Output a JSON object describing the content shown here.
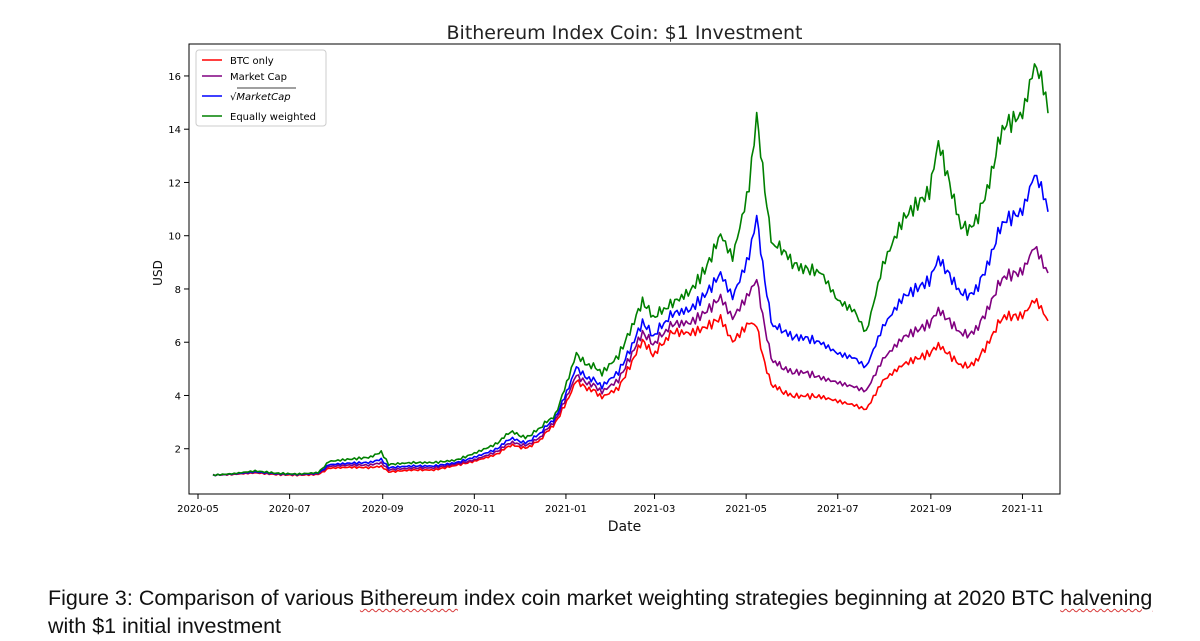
{
  "chart_data": {
    "type": "line",
    "title": "Bithereum Index Coin: $1 Investment",
    "xlabel": "Date",
    "ylabel": "USD",
    "x_ticks": [
      "2020-05",
      "2020-07",
      "2020-09",
      "2020-11",
      "2021-01",
      "2021-03",
      "2021-05",
      "2021-07",
      "2021-09",
      "2021-11"
    ],
    "y_ticks": [
      2,
      4,
      6,
      8,
      10,
      12,
      14,
      16
    ],
    "xlim": [
      "2020-04-25",
      "2021-11-26"
    ],
    "ylim": [
      0.3,
      17.2
    ],
    "legend_position": "top-left",
    "series": [
      {
        "name": "BTC only",
        "color": "#ff0000",
        "points": [
          [
            "2020-05-11",
            1.0
          ],
          [
            "2020-05-25",
            1.02
          ],
          [
            "2020-06-08",
            1.08
          ],
          [
            "2020-06-22",
            1.03
          ],
          [
            "2020-07-06",
            1.02
          ],
          [
            "2020-07-20",
            1.05
          ],
          [
            "2020-07-27",
            1.25
          ],
          [
            "2020-08-10",
            1.3
          ],
          [
            "2020-08-24",
            1.3
          ],
          [
            "2020-08-31",
            1.32
          ],
          [
            "2020-09-05",
            1.12
          ],
          [
            "2020-09-20",
            1.18
          ],
          [
            "2020-10-05",
            1.2
          ],
          [
            "2020-10-20",
            1.4
          ],
          [
            "2020-11-01",
            1.55
          ],
          [
            "2020-11-15",
            1.8
          ],
          [
            "2020-11-25",
            2.1
          ],
          [
            "2020-12-05",
            2.05
          ],
          [
            "2020-12-15",
            2.3
          ],
          [
            "2020-12-25",
            3.0
          ],
          [
            "2021-01-03",
            4.0
          ],
          [
            "2021-01-08",
            4.6
          ],
          [
            "2021-01-15",
            4.3
          ],
          [
            "2021-01-25",
            3.9
          ],
          [
            "2021-02-05",
            4.2
          ],
          [
            "2021-02-14",
            5.2
          ],
          [
            "2021-02-21",
            6.2
          ],
          [
            "2021-02-28",
            5.4
          ],
          [
            "2021-03-13",
            6.5
          ],
          [
            "2021-03-25",
            6.4
          ],
          [
            "2021-04-05",
            6.7
          ],
          [
            "2021-04-14",
            7.0
          ],
          [
            "2021-04-22",
            6.1
          ],
          [
            "2021-05-03",
            6.7
          ],
          [
            "2021-05-08",
            6.5
          ],
          [
            "2021-05-12",
            5.5
          ],
          [
            "2021-05-19",
            4.3
          ],
          [
            "2021-05-26",
            4.1
          ],
          [
            "2021-06-08",
            4.0
          ],
          [
            "2021-06-20",
            3.9
          ],
          [
            "2021-07-01",
            3.8
          ],
          [
            "2021-07-12",
            3.7
          ],
          [
            "2021-07-20",
            3.5
          ],
          [
            "2021-07-31",
            4.5
          ],
          [
            "2021-08-14",
            5.1
          ],
          [
            "2021-08-31",
            5.5
          ],
          [
            "2021-09-06",
            5.8
          ],
          [
            "2021-09-21",
            5.1
          ],
          [
            "2021-10-01",
            5.3
          ],
          [
            "2021-10-10",
            6.0
          ],
          [
            "2021-10-20",
            7.0
          ],
          [
            "2021-11-01",
            7.1
          ],
          [
            "2021-11-09",
            7.6
          ],
          [
            "2021-11-15",
            7.2
          ],
          [
            "2021-11-18",
            6.8
          ]
        ]
      },
      {
        "name": "Market Cap",
        "color": "#800080",
        "points": [
          [
            "2020-05-11",
            1.0
          ],
          [
            "2020-05-25",
            1.03
          ],
          [
            "2020-06-08",
            1.1
          ],
          [
            "2020-06-22",
            1.05
          ],
          [
            "2020-07-06",
            1.04
          ],
          [
            "2020-07-20",
            1.08
          ],
          [
            "2020-07-27",
            1.32
          ],
          [
            "2020-08-10",
            1.38
          ],
          [
            "2020-08-24",
            1.4
          ],
          [
            "2020-08-31",
            1.45
          ],
          [
            "2020-09-05",
            1.2
          ],
          [
            "2020-09-20",
            1.25
          ],
          [
            "2020-10-05",
            1.28
          ],
          [
            "2020-10-20",
            1.45
          ],
          [
            "2020-11-01",
            1.6
          ],
          [
            "2020-11-15",
            1.9
          ],
          [
            "2020-11-25",
            2.2
          ],
          [
            "2020-12-05",
            2.15
          ],
          [
            "2020-12-15",
            2.4
          ],
          [
            "2020-12-25",
            3.1
          ],
          [
            "2021-01-03",
            4.2
          ],
          [
            "2021-01-08",
            4.8
          ],
          [
            "2021-01-15",
            4.5
          ],
          [
            "2021-01-25",
            4.1
          ],
          [
            "2021-02-05",
            4.5
          ],
          [
            "2021-02-14",
            5.5
          ],
          [
            "2021-02-21",
            6.5
          ],
          [
            "2021-02-28",
            5.8
          ],
          [
            "2021-03-13",
            6.8
          ],
          [
            "2021-03-25",
            6.8
          ],
          [
            "2021-04-05",
            7.3
          ],
          [
            "2021-04-14",
            7.8
          ],
          [
            "2021-04-22",
            7.0
          ],
          [
            "2021-05-03",
            7.8
          ],
          [
            "2021-05-08",
            8.2
          ],
          [
            "2021-05-12",
            7.0
          ],
          [
            "2021-05-19",
            5.2
          ],
          [
            "2021-05-26",
            5.0
          ],
          [
            "2021-06-08",
            4.9
          ],
          [
            "2021-06-20",
            4.6
          ],
          [
            "2021-07-01",
            4.5
          ],
          [
            "2021-07-12",
            4.4
          ],
          [
            "2021-07-20",
            4.2
          ],
          [
            "2021-07-31",
            5.3
          ],
          [
            "2021-08-14",
            6.1
          ],
          [
            "2021-08-31",
            6.6
          ],
          [
            "2021-09-06",
            7.1
          ],
          [
            "2021-09-21",
            6.3
          ],
          [
            "2021-10-01",
            6.5
          ],
          [
            "2021-10-10",
            7.3
          ],
          [
            "2021-10-20",
            8.5
          ],
          [
            "2021-11-01",
            8.8
          ],
          [
            "2021-11-09",
            9.6
          ],
          [
            "2021-11-15",
            9.0
          ],
          [
            "2021-11-18",
            8.6
          ]
        ]
      },
      {
        "name": "√MarketCap",
        "color": "#0000ff",
        "points": [
          [
            "2020-05-11",
            1.0
          ],
          [
            "2020-05-25",
            1.04
          ],
          [
            "2020-06-08",
            1.12
          ],
          [
            "2020-06-22",
            1.06
          ],
          [
            "2020-07-06",
            1.05
          ],
          [
            "2020-07-20",
            1.1
          ],
          [
            "2020-07-27",
            1.38
          ],
          [
            "2020-08-10",
            1.45
          ],
          [
            "2020-08-24",
            1.5
          ],
          [
            "2020-08-31",
            1.58
          ],
          [
            "2020-09-05",
            1.28
          ],
          [
            "2020-09-20",
            1.33
          ],
          [
            "2020-10-05",
            1.35
          ],
          [
            "2020-10-20",
            1.5
          ],
          [
            "2020-11-01",
            1.7
          ],
          [
            "2020-11-15",
            2.0
          ],
          [
            "2020-11-25",
            2.35
          ],
          [
            "2020-12-05",
            2.25
          ],
          [
            "2020-12-15",
            2.55
          ],
          [
            "2020-12-25",
            3.2
          ],
          [
            "2021-01-03",
            4.4
          ],
          [
            "2021-01-08",
            5.1
          ],
          [
            "2021-01-15",
            4.7
          ],
          [
            "2021-01-25",
            4.3
          ],
          [
            "2021-02-05",
            4.8
          ],
          [
            "2021-02-14",
            5.8
          ],
          [
            "2021-02-21",
            6.9
          ],
          [
            "2021-02-28",
            6.1
          ],
          [
            "2021-03-13",
            7.2
          ],
          [
            "2021-03-25",
            7.3
          ],
          [
            "2021-04-05",
            8.0
          ],
          [
            "2021-04-14",
            8.7
          ],
          [
            "2021-04-22",
            7.8
          ],
          [
            "2021-05-03",
            9.2
          ],
          [
            "2021-05-08",
            10.5
          ],
          [
            "2021-05-12",
            8.9
          ],
          [
            "2021-05-19",
            6.5
          ],
          [
            "2021-05-26",
            6.4
          ],
          [
            "2021-06-08",
            6.2
          ],
          [
            "2021-06-20",
            5.9
          ],
          [
            "2021-07-01",
            5.6
          ],
          [
            "2021-07-12",
            5.5
          ],
          [
            "2021-07-20",
            5.1
          ],
          [
            "2021-07-31",
            6.5
          ],
          [
            "2021-08-14",
            7.6
          ],
          [
            "2021-08-31",
            8.2
          ],
          [
            "2021-09-06",
            9.0
          ],
          [
            "2021-09-21",
            7.8
          ],
          [
            "2021-10-01",
            8.0
          ],
          [
            "2021-10-10",
            9.0
          ],
          [
            "2021-10-20",
            10.6
          ],
          [
            "2021-11-01",
            11.1
          ],
          [
            "2021-11-09",
            12.3
          ],
          [
            "2021-11-15",
            11.7
          ],
          [
            "2021-11-18",
            10.9
          ]
        ]
      },
      {
        "name": "Equally weighted",
        "color": "#008000",
        "points": [
          [
            "2020-05-11",
            1.0
          ],
          [
            "2020-05-25",
            1.05
          ],
          [
            "2020-06-08",
            1.15
          ],
          [
            "2020-06-22",
            1.08
          ],
          [
            "2020-07-06",
            1.06
          ],
          [
            "2020-07-20",
            1.12
          ],
          [
            "2020-07-27",
            1.5
          ],
          [
            "2020-08-10",
            1.6
          ],
          [
            "2020-08-24",
            1.7
          ],
          [
            "2020-08-31",
            1.85
          ],
          [
            "2020-09-05",
            1.4
          ],
          [
            "2020-09-20",
            1.45
          ],
          [
            "2020-10-05",
            1.48
          ],
          [
            "2020-10-20",
            1.6
          ],
          [
            "2020-11-01",
            1.85
          ],
          [
            "2020-11-15",
            2.2
          ],
          [
            "2020-11-25",
            2.6
          ],
          [
            "2020-12-05",
            2.45
          ],
          [
            "2020-12-15",
            2.75
          ],
          [
            "2020-12-25",
            3.3
          ],
          [
            "2021-01-03",
            4.8
          ],
          [
            "2021-01-08",
            5.6
          ],
          [
            "2021-01-15",
            5.2
          ],
          [
            "2021-01-25",
            4.8
          ],
          [
            "2021-02-05",
            5.4
          ],
          [
            "2021-02-14",
            6.5
          ],
          [
            "2021-02-21",
            7.7
          ],
          [
            "2021-02-28",
            6.8
          ],
          [
            "2021-03-13",
            7.6
          ],
          [
            "2021-03-25",
            8.0
          ],
          [
            "2021-04-05",
            9.0
          ],
          [
            "2021-04-14",
            10.2
          ],
          [
            "2021-04-22",
            9.3
          ],
          [
            "2021-05-03",
            11.8
          ],
          [
            "2021-05-08",
            14.2
          ],
          [
            "2021-05-12",
            12.5
          ],
          [
            "2021-05-19",
            9.5
          ],
          [
            "2021-05-26",
            9.4
          ],
          [
            "2021-06-08",
            8.8
          ],
          [
            "2021-06-20",
            8.5
          ],
          [
            "2021-07-01",
            7.6
          ],
          [
            "2021-07-12",
            7.3
          ],
          [
            "2021-07-20",
            6.4
          ],
          [
            "2021-07-31",
            8.8
          ],
          [
            "2021-08-14",
            10.5
          ],
          [
            "2021-08-31",
            11.5
          ],
          [
            "2021-09-06",
            13.3
          ],
          [
            "2021-09-21",
            10.3
          ],
          [
            "2021-10-01",
            10.6
          ],
          [
            "2021-10-10",
            11.9
          ],
          [
            "2021-10-20",
            14.2
          ],
          [
            "2021-11-01",
            14.8
          ],
          [
            "2021-11-09",
            16.4
          ],
          [
            "2021-11-15",
            15.8
          ],
          [
            "2021-11-18",
            14.6
          ]
        ]
      }
    ]
  },
  "caption": {
    "prefix": "Figure 3: Comparison of various ",
    "word1": "Bithereum",
    "middle": " index coin market weighting strategies beginning at 2020 BTC ",
    "word2": "halvening",
    "suffix": " with $1 initial investment"
  }
}
